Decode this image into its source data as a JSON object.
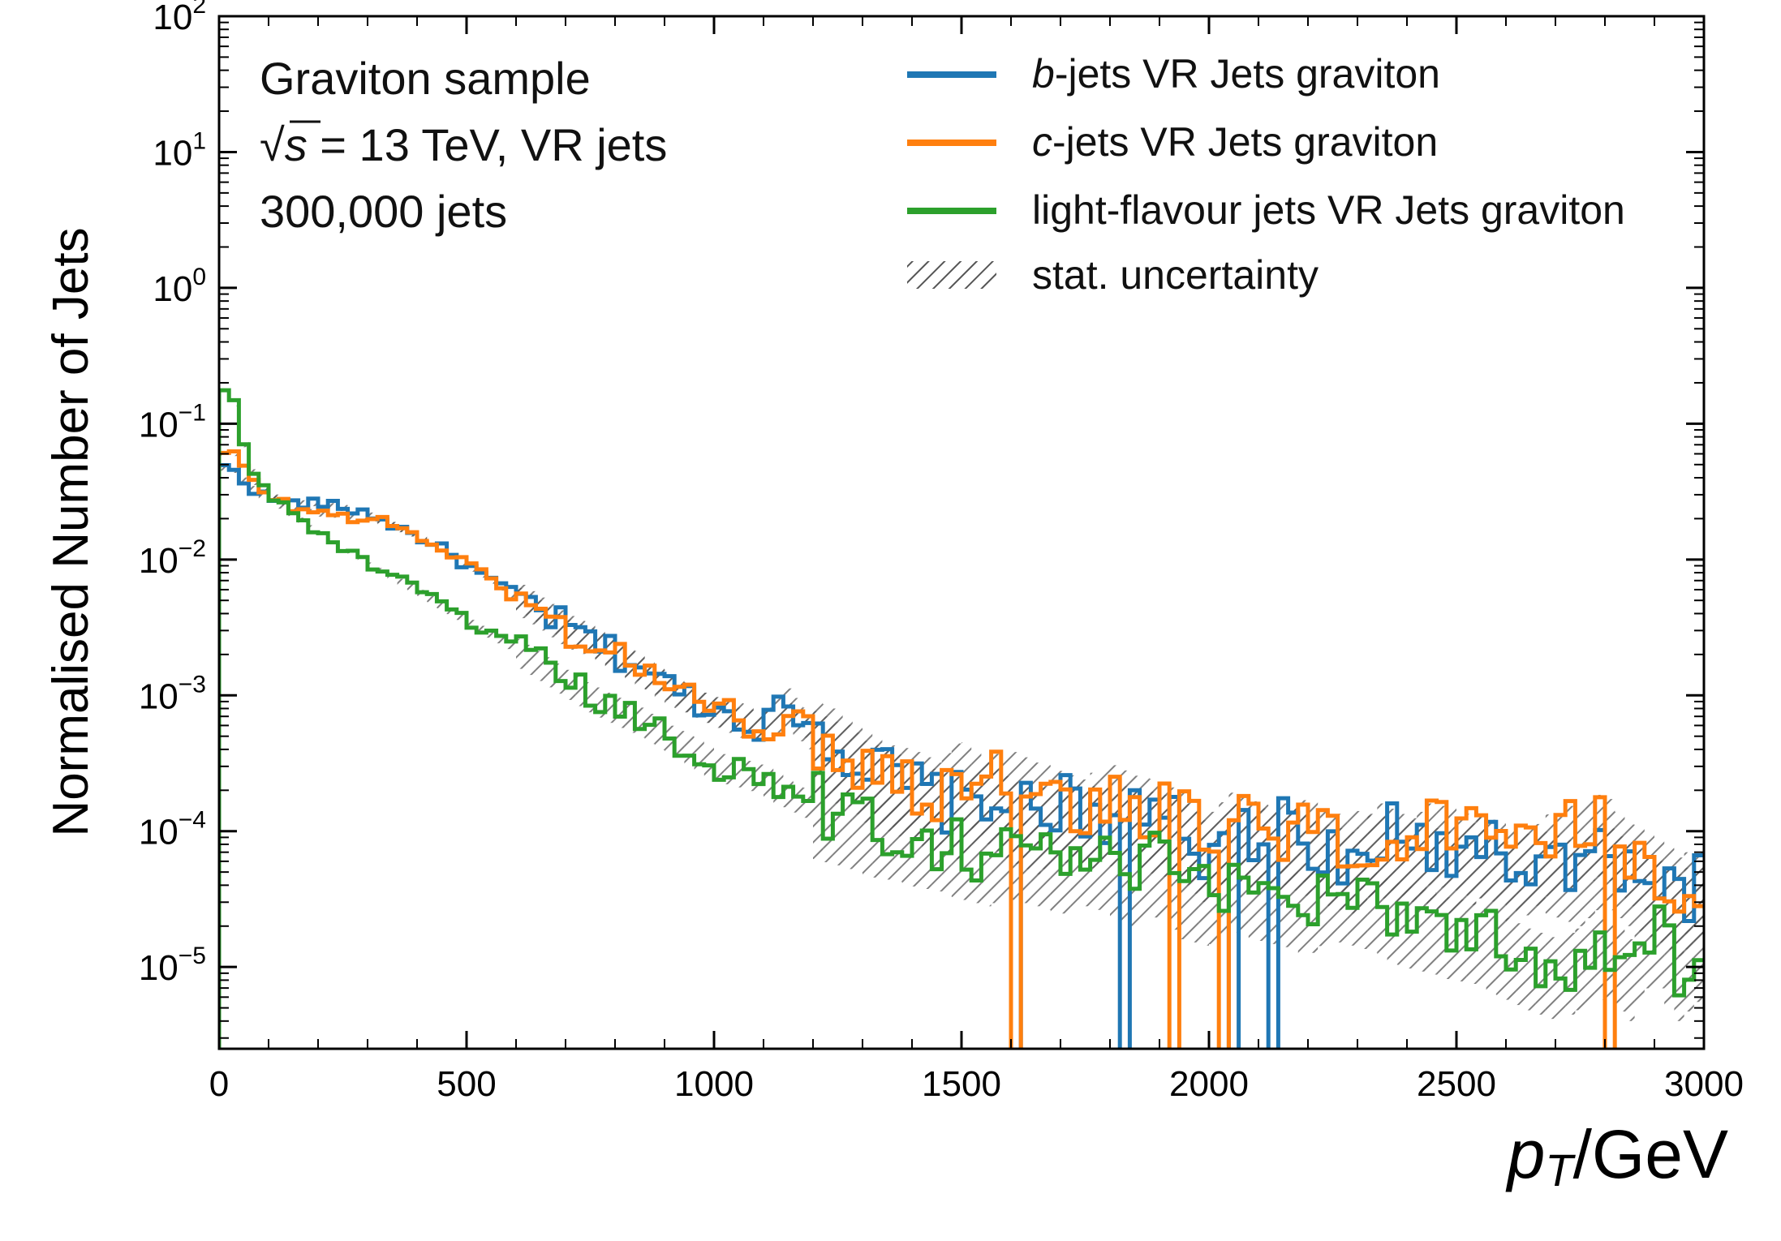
{
  "chart_data": {
    "type": "step histogram",
    "xlabel": "p_T/GeV",
    "xlabel_parts": {
      "symbol": "p",
      "subscript": "T",
      "unit": "/GeV"
    },
    "ylabel": "Normalised Number of Jets",
    "yscale": "log",
    "xlim": [
      0,
      3000
    ],
    "ylim": [
      2.5e-06,
      100
    ],
    "x_ticks": [
      "0",
      "500",
      "1000",
      "1500",
      "2000",
      "2500",
      "3000"
    ],
    "y_ticks": [
      {
        "base": "10",
        "exp": "2",
        "value": 100
      },
      {
        "base": "10",
        "exp": "1",
        "value": 10
      },
      {
        "base": "10",
        "exp": "0",
        "value": 1
      },
      {
        "base": "10",
        "exp": "−1",
        "value": 0.1
      },
      {
        "base": "10",
        "exp": "−2",
        "value": 0.01
      },
      {
        "base": "10",
        "exp": "−3",
        "value": 0.001
      },
      {
        "base": "10",
        "exp": "−4",
        "value": 0.0001
      },
      {
        "base": "10",
        "exp": "−5",
        "value": 1e-05
      }
    ],
    "annotations": {
      "line1": "Graviton sample",
      "line2_root": "√",
      "line2_s": "s",
      "line2_rest": " = 13 TeV, VR jets",
      "line3": "300,000 jets"
    },
    "legend": {
      "placement": "top-right",
      "entries": [
        {
          "italic": "b",
          "text": "-jets VR Jets graviton",
          "color": "#1f77b4"
        },
        {
          "italic": "c",
          "text": "-jets VR Jets graviton",
          "color": "#ff7f0e"
        },
        {
          "italic": "",
          "text": "light-flavour jets VR Jets graviton",
          "color": "#2ca02c"
        },
        {
          "italic": "",
          "text": "stat. uncertainty",
          "hatch": true
        }
      ]
    },
    "bin_width": 20,
    "series": [
      {
        "name": "b-jets VR Jets graviton",
        "color": "#1f77b4",
        "x": [
          0,
          20,
          60,
          100,
          150,
          200,
          250,
          300,
          350,
          400,
          450,
          500,
          550,
          600,
          650,
          700,
          750,
          800,
          850,
          900,
          950,
          1000,
          1050,
          1100,
          1150,
          1200,
          1250,
          1300,
          1350,
          1400,
          1450,
          1500,
          1550,
          1600,
          1650,
          1700,
          1750,
          1800,
          1850,
          1900,
          1950,
          2000,
          2050,
          2100,
          2150,
          2200,
          2250,
          2300,
          2350,
          2400,
          2450,
          2500,
          2550,
          2600,
          2650,
          2700,
          2750,
          2800,
          2850,
          2900,
          2950,
          3000
        ],
        "y": [
          0.045,
          0.05,
          0.035,
          0.028,
          0.026,
          0.026,
          0.024,
          0.022,
          0.018,
          0.015,
          0.012,
          0.009,
          0.007,
          0.0055,
          0.0042,
          0.0032,
          0.0026,
          0.002,
          0.0017,
          0.0012,
          0.001,
          0.0008,
          0.0007,
          0.0006,
          0.0009,
          0.0006,
          0.0005,
          0.0003,
          0.00025,
          0.0002,
          0.00018,
          0.00015,
          0.0002,
          0.00015,
          0.00012,
          0.00015,
          0.00013,
          0.00014,
          0.00013,
          0.00012,
          0.0001,
          7e-05,
          0.00011,
          9e-05,
          0.0001,
          8e-05,
          7e-05,
          6e-05,
          0.0001,
          8e-05,
          7e-05,
          6e-05,
          8e-05,
          5e-05,
          7e-05,
          6e-05,
          5e-05,
          7e-05,
          5e-05,
          4e-05,
          3e-05,
          4e-05
        ]
      },
      {
        "name": "c-jets VR Jets graviton",
        "color": "#ff7f0e",
        "x": [
          0,
          20,
          60,
          100,
          150,
          200,
          250,
          300,
          350,
          400,
          450,
          500,
          550,
          600,
          650,
          700,
          750,
          800,
          850,
          900,
          950,
          1000,
          1050,
          1100,
          1150,
          1200,
          1250,
          1300,
          1350,
          1400,
          1450,
          1500,
          1550,
          1600,
          1650,
          1700,
          1750,
          1800,
          1850,
          1900,
          1950,
          2000,
          2050,
          2100,
          2150,
          2200,
          2250,
          2300,
          2350,
          2400,
          2450,
          2500,
          2550,
          2600,
          2650,
          2700,
          2750,
          2800,
          2850,
          2900,
          2950,
          3000
        ],
        "y": [
          0.05,
          0.07,
          0.04,
          0.03,
          0.024,
          0.022,
          0.021,
          0.02,
          0.018,
          0.015,
          0.012,
          0.0095,
          0.007,
          0.0052,
          0.004,
          0.003,
          0.0025,
          0.002,
          0.0016,
          0.0013,
          0.001,
          0.0008,
          0.00065,
          0.0006,
          0.0007,
          0.0005,
          0.0004,
          0.00035,
          0.00028,
          0.00025,
          0.0002,
          0.0003,
          0.00022,
          0.00025,
          0.0002,
          0.00018,
          0.00015,
          0.0002,
          0.00016,
          0.00015,
          0.00012,
          8e-05,
          0.00012,
          0.0001,
          9e-05,
          0.00011,
          8e-05,
          9e-05,
          8e-05,
          7e-05,
          0.0001,
          9e-05,
          8e-05,
          7e-05,
          6e-05,
          9e-05,
          0.0001,
          0.00012,
          7e-05,
          6e-05,
          4e-05,
          5e-05
        ]
      },
      {
        "name": "light-flavour jets VR Jets graviton",
        "color": "#2ca02c",
        "x": [
          0,
          20,
          60,
          100,
          150,
          200,
          250,
          300,
          350,
          400,
          450,
          500,
          550,
          600,
          650,
          700,
          750,
          800,
          850,
          900,
          950,
          1000,
          1050,
          1100,
          1150,
          1200,
          1250,
          1300,
          1350,
          1400,
          1450,
          1500,
          1550,
          1600,
          1650,
          1700,
          1750,
          1800,
          1850,
          1900,
          1950,
          2000,
          2050,
          2100,
          2150,
          2200,
          2250,
          2300,
          2350,
          2400,
          2450,
          2500,
          2550,
          2600,
          2650,
          2700,
          2750,
          2800,
          2850,
          2900,
          2950,
          3000
        ],
        "y": [
          0.15,
          0.2,
          0.05,
          0.03,
          0.022,
          0.016,
          0.012,
          0.0095,
          0.0075,
          0.006,
          0.0046,
          0.0036,
          0.0028,
          0.0022,
          0.0017,
          0.0013,
          0.001,
          0.0008,
          0.00065,
          0.0005,
          0.0004,
          0.00032,
          0.00028,
          0.00024,
          0.0002,
          0.00016,
          0.00014,
          0.00012,
          0.00011,
          0.0001,
          9e-05,
          8e-05,
          7e-05,
          8e-05,
          7e-05,
          6e-05,
          7e-05,
          6e-05,
          5e-05,
          6e-05,
          4e-05,
          3.5e-05,
          4.5e-05,
          4e-05,
          3.5e-05,
          3e-05,
          4e-05,
          3.5e-05,
          3e-05,
          2.5e-05,
          2.2e-05,
          2e-05,
          1.8e-05,
          1.5e-05,
          1.2e-05,
          1e-05,
          1.2e-05,
          1.5e-05,
          1e-05,
          2e-05,
          1e-05,
          1.5e-05
        ]
      }
    ]
  }
}
